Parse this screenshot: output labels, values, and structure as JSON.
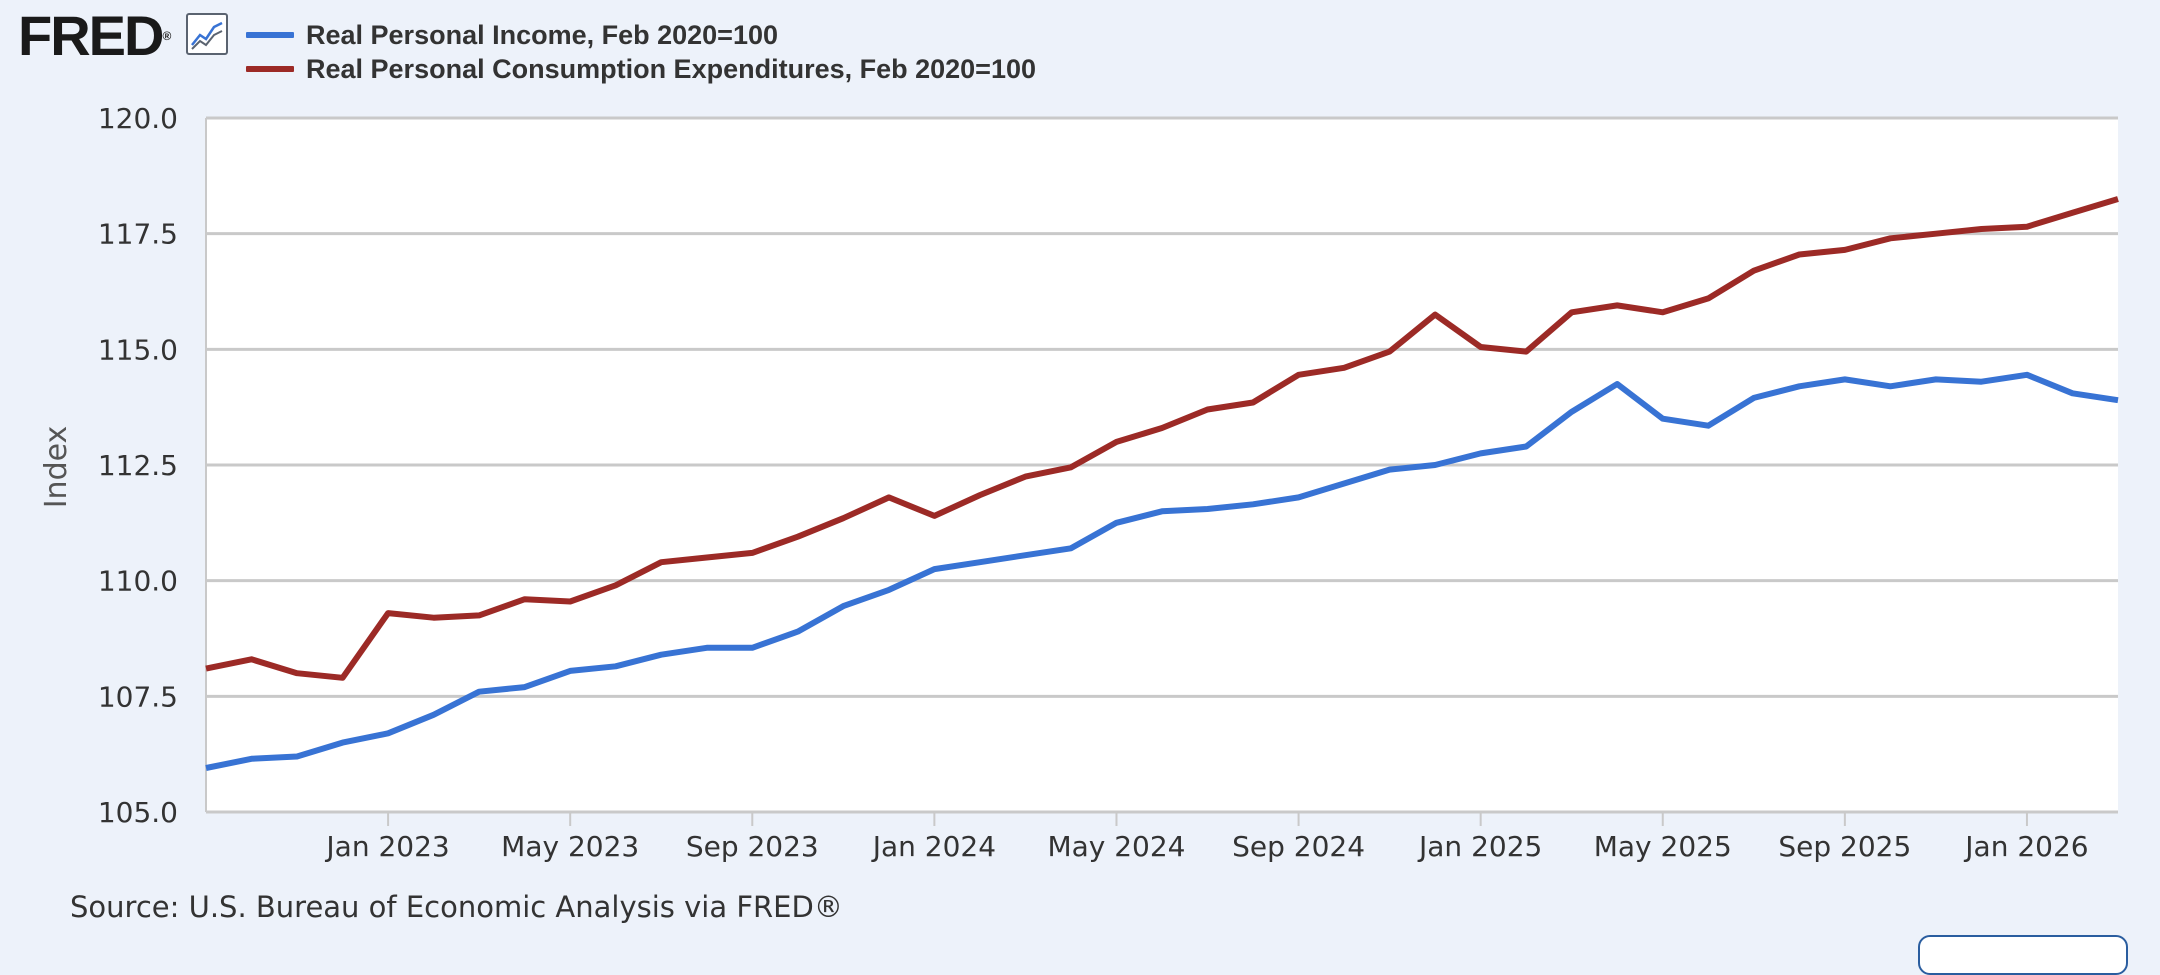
{
  "header": {
    "logo_text": "FRED",
    "logo_reg": "®",
    "logo_icon": "line-graph-icon"
  },
  "footer": {
    "source": "Source: U.S. Bureau of Economic Analysis via FRED®"
  },
  "colors": {
    "background": "#edf2fa",
    "plot_background": "#ffffff",
    "gridline": "#c9c9c9",
    "income": "#3873d4",
    "pce": "#9c2a26"
  },
  "chart_data": {
    "type": "line",
    "ylabel": "Index",
    "ylim": [
      105.0,
      120.0
    ],
    "yticks": [
      "105.0",
      "107.5",
      "110.0",
      "112.5",
      "115.0",
      "117.5",
      "120.0"
    ],
    "xlim": [
      "2022-09",
      "2026-03"
    ],
    "xticks": [
      {
        "date": "2023-01",
        "label": "Jan 2023"
      },
      {
        "date": "2023-05",
        "label": "May 2023"
      },
      {
        "date": "2023-09",
        "label": "Sep 2023"
      },
      {
        "date": "2024-01",
        "label": "Jan 2024"
      },
      {
        "date": "2024-05",
        "label": "May 2024"
      },
      {
        "date": "2024-09",
        "label": "Sep 2024"
      },
      {
        "date": "2025-01",
        "label": "Jan 2025"
      },
      {
        "date": "2025-05",
        "label": "May 2025"
      },
      {
        "date": "2025-09",
        "label": "Sep 2025"
      },
      {
        "date": "2026-01",
        "label": "Jan 2026"
      }
    ],
    "grid": true,
    "x": [
      "2022-09",
      "2022-10",
      "2022-11",
      "2022-12",
      "2023-01",
      "2023-02",
      "2023-03",
      "2023-04",
      "2023-05",
      "2023-06",
      "2023-07",
      "2023-08",
      "2023-09",
      "2023-10",
      "2023-11",
      "2023-12",
      "2024-01",
      "2024-02",
      "2024-03",
      "2024-04",
      "2024-05",
      "2024-06",
      "2024-07",
      "2024-08",
      "2024-09",
      "2024-10",
      "2024-11",
      "2024-12",
      "2025-01",
      "2025-02",
      "2025-03",
      "2025-04",
      "2025-05",
      "2025-06",
      "2025-07",
      "2025-08",
      "2025-09",
      "2025-10",
      "2025-11",
      "2025-12",
      "2026-01",
      "2026-02",
      "2026-03"
    ],
    "series": [
      {
        "name": "Real Personal Income, Feb 2020=100",
        "color": "#3873d4",
        "values": [
          105.95,
          106.15,
          106.2,
          106.5,
          106.7,
          107.1,
          107.6,
          107.7,
          108.05,
          108.15,
          108.4,
          108.55,
          108.55,
          108.9,
          109.45,
          109.8,
          110.25,
          110.4,
          110.55,
          110.7,
          111.25,
          111.5,
          111.55,
          111.65,
          111.8,
          112.1,
          112.4,
          112.5,
          112.75,
          112.9,
          113.65,
          114.25,
          113.5,
          113.35,
          113.95,
          114.2,
          114.35,
          114.2,
          114.35,
          114.3,
          114.45,
          114.05,
          113.9
        ]
      },
      {
        "name": "Real Personal Consumption Expenditures, Feb 2020=100",
        "color": "#9c2a26",
        "values": [
          108.1,
          108.3,
          108.0,
          107.9,
          109.3,
          109.2,
          109.25,
          109.6,
          109.55,
          109.9,
          110.4,
          110.5,
          110.6,
          110.95,
          111.35,
          111.8,
          111.4,
          111.85,
          112.25,
          112.45,
          113.0,
          113.3,
          113.7,
          113.85,
          114.45,
          114.6,
          114.95,
          115.75,
          115.05,
          114.95,
          115.8,
          115.95,
          115.8,
          116.1,
          116.7,
          117.05,
          117.15,
          117.4,
          117.5,
          117.6,
          117.65,
          117.95,
          118.25
        ]
      }
    ]
  }
}
